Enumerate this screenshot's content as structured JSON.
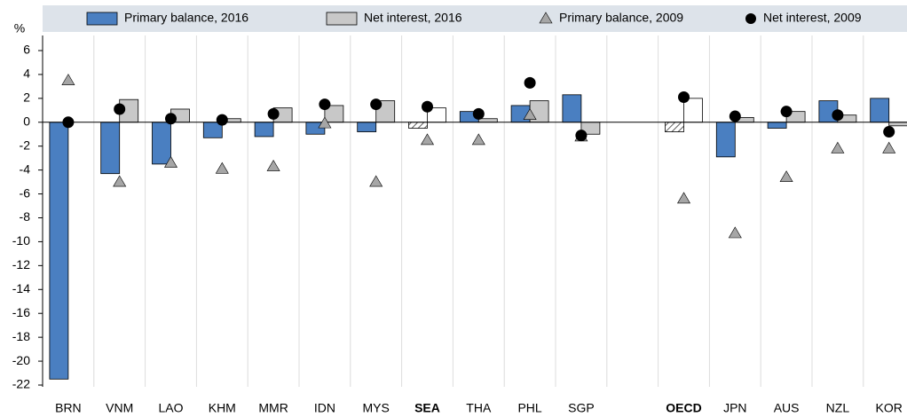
{
  "chart_data": {
    "type": "bar",
    "y_label": "%",
    "categories": [
      "BRN",
      "VNM",
      "LAO",
      "KHM",
      "MMR",
      "IDN",
      "MYS",
      "SEA",
      "THA",
      "PHL",
      "SGP",
      null,
      "OECD",
      "JPN",
      "AUS",
      "NZL",
      "KOR"
    ],
    "bold_categories": [
      7,
      12
    ],
    "series": [
      {
        "name": "Primary balance, 2016",
        "kind": "bar",
        "color": "#4a7fc1",
        "values": [
          -21.5,
          -4.3,
          -3.5,
          -1.3,
          -1.2,
          -1.0,
          -0.8,
          -0.5,
          0.9,
          1.4,
          2.3,
          null,
          -0.8,
          -2.9,
          -0.5,
          1.8,
          2.0
        ]
      },
      {
        "name": "Net interest, 2016",
        "kind": "bar",
        "color": "#c8c8c8",
        "values": [
          null,
          1.9,
          1.1,
          0.3,
          1.2,
          1.4,
          1.8,
          1.2,
          0.3,
          1.8,
          -1.0,
          null,
          2.0,
          0.4,
          0.9,
          0.6,
          -0.3
        ]
      },
      {
        "name": "Primary balance, 2009",
        "kind": "triangle",
        "color": "#a6a6a6",
        "values": [
          3.5,
          -5.0,
          -3.4,
          -3.9,
          -3.7,
          -0.1,
          -5.0,
          -1.5,
          -1.5,
          0.6,
          -1.2,
          null,
          -6.4,
          -9.3,
          -4.6,
          -2.2,
          -2.2
        ]
      },
      {
        "name": "Net interest, 2009",
        "kind": "circle",
        "color": "#000000",
        "values": [
          0.0,
          1.1,
          0.3,
          0.2,
          0.7,
          1.5,
          1.5,
          1.3,
          0.7,
          3.3,
          -1.1,
          null,
          2.1,
          0.5,
          0.9,
          0.6,
          -0.8
        ]
      }
    ],
    "ylim": [
      -22,
      6
    ],
    "yticks": [
      -22,
      -20,
      -18,
      -16,
      -14,
      -12,
      -10,
      -8,
      -6,
      -4,
      -2,
      0,
      2,
      4,
      6
    ]
  }
}
